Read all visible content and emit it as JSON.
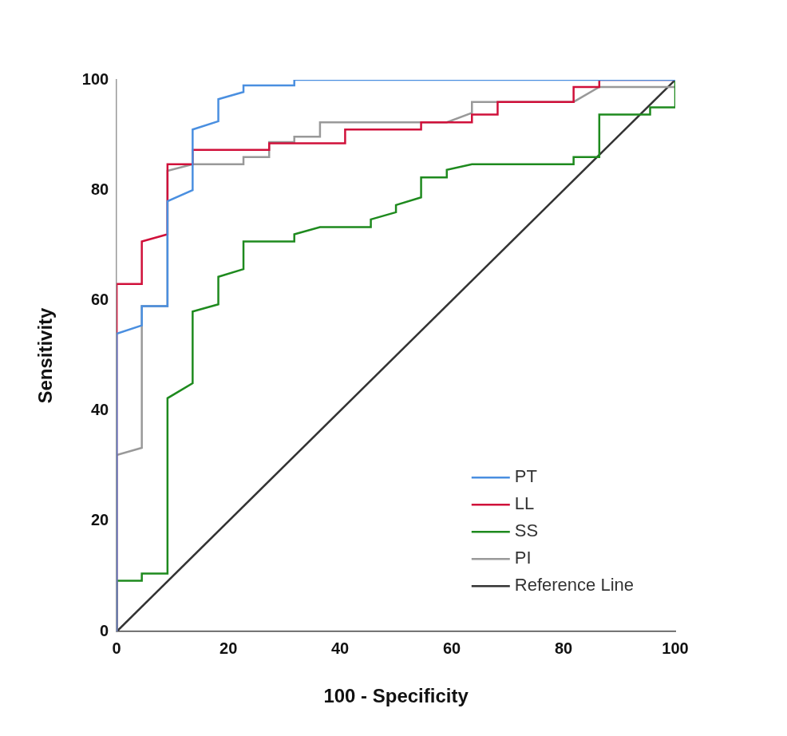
{
  "chart_data": {
    "type": "line",
    "x_label": "100 - Specificity",
    "y_label": "Sensitivity",
    "xlim": [
      0,
      100
    ],
    "ylim": [
      0,
      100
    ],
    "xticks": [
      0,
      20,
      40,
      60,
      80,
      100
    ],
    "yticks": [
      0,
      20,
      40,
      60,
      80,
      100
    ],
    "grid": false,
    "legend": "lower right",
    "series": [
      {
        "name": "PT",
        "color": "#4a8fe0",
        "x": [
          0,
          0,
          4.5,
          4.5,
          9.1,
          9.1,
          13.6,
          13.6,
          18.2,
          18.2,
          22.7,
          22.7,
          31.8,
          31.8,
          100
        ],
        "values": [
          0,
          54,
          55.5,
          59,
          59,
          78,
          80,
          91,
          92.5,
          96.5,
          97.8,
          99,
          99,
          100,
          100
        ]
      },
      {
        "name": "LL",
        "color": "#d0103a",
        "x": [
          0,
          0,
          4.5,
          4.5,
          9.1,
          9.1,
          13.6,
          13.6,
          27.3,
          27.3,
          40.9,
          40.9,
          54.5,
          54.5,
          63.6,
          63.6,
          68.2,
          68.2,
          81.8,
          81.8,
          86.4,
          86.4,
          100
        ],
        "values": [
          0,
          63,
          63,
          70.7,
          72,
          84.7,
          84.7,
          87.3,
          87.3,
          88.5,
          88.5,
          91,
          91,
          92.3,
          92.3,
          93.7,
          93.7,
          96,
          96,
          98.7,
          98.7,
          100,
          100
        ]
      },
      {
        "name": "SS",
        "color": "#1e8a1e",
        "x": [
          0,
          0,
          4.5,
          4.5,
          9.1,
          9.1,
          13.6,
          13.6,
          18.2,
          18.2,
          22.7,
          22.7,
          31.8,
          31.8,
          36.4,
          45.5,
          45.5,
          50,
          50,
          54.5,
          54.5,
          59.1,
          59.1,
          63.6,
          81.8,
          81.8,
          86.4,
          86.4,
          95.5,
          95.5,
          100,
          100
        ],
        "values": [
          0,
          9.2,
          9.2,
          10.5,
          10.5,
          42.3,
          45,
          58,
          59.3,
          64.3,
          65.7,
          70.7,
          70.7,
          72,
          73.3,
          73.3,
          74.7,
          76,
          77.3,
          78.7,
          82.3,
          82.3,
          83.7,
          84.7,
          84.7,
          86,
          86,
          93.7,
          93.7,
          95,
          95,
          100
        ]
      },
      {
        "name": "PI",
        "color": "#999999",
        "x": [
          0,
          0,
          4.5,
          4.5,
          9.1,
          9.1,
          13.6,
          22.7,
          22.7,
          27.3,
          27.3,
          31.8,
          31.8,
          36.4,
          36.4,
          59.1,
          63.6,
          63.6,
          81.8,
          86.4,
          100
        ],
        "values": [
          0,
          32,
          33.3,
          59,
          59,
          83.5,
          84.7,
          84.7,
          86,
          86,
          88.7,
          88.7,
          89.7,
          89.7,
          92.3,
          92.3,
          94,
          96,
          96,
          98.7,
          98.7
        ]
      },
      {
        "name": "Reference Line",
        "color": "#333333",
        "x": [
          0,
          100
        ],
        "values": [
          0,
          100
        ]
      }
    ]
  }
}
